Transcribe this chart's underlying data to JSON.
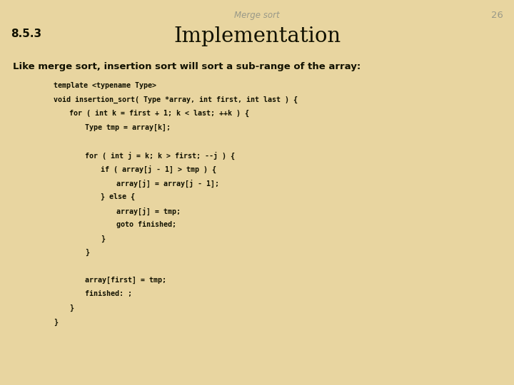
{
  "background_color": "#e8d5a0",
  "header_text": "Merge sort",
  "header_color": "#999988",
  "page_number": "26",
  "page_number_color": "#999988",
  "section_label": "8.5.3",
  "section_label_color": "#111100",
  "title": "Implementation",
  "title_color": "#111100",
  "subtitle": "Like merge sort, insertion sort will sort a sub-range of the array:",
  "subtitle_color": "#111100",
  "code_color": "#111100",
  "figsize": [
    7.2,
    5.4
  ],
  "dpi": 100,
  "code_lines": [
    {
      "text": "template <typename Type>",
      "indent": 0
    },
    {
      "text": "void insertion_sort( Type *array, int first, int last ) {",
      "indent": 0
    },
    {
      "text": "for ( int k = first + 1; k < last; ++k ) {",
      "indent": 1
    },
    {
      "text": "Type tmp = array[k];",
      "indent": 2
    },
    {
      "text": "",
      "indent": 0
    },
    {
      "text": "for ( int j = k; k > first; --j ) {",
      "indent": 2
    },
    {
      "text": "if ( array[j - 1] > tmp ) {",
      "indent": 3
    },
    {
      "text": "array[j] = array[j - 1];",
      "indent": 4
    },
    {
      "text": "} else {",
      "indent": 3
    },
    {
      "text": "array[j] = tmp;",
      "indent": 4
    },
    {
      "text": "goto finished;",
      "indent": 4
    },
    {
      "text": "}",
      "indent": 3
    },
    {
      "text": "}",
      "indent": 2
    },
    {
      "text": "",
      "indent": 0
    },
    {
      "text": "array[first] = tmp;",
      "indent": 2
    },
    {
      "text": "finished: ;",
      "indent": 2
    },
    {
      "text": "}",
      "indent": 1
    },
    {
      "text": "}",
      "indent": 0
    }
  ]
}
